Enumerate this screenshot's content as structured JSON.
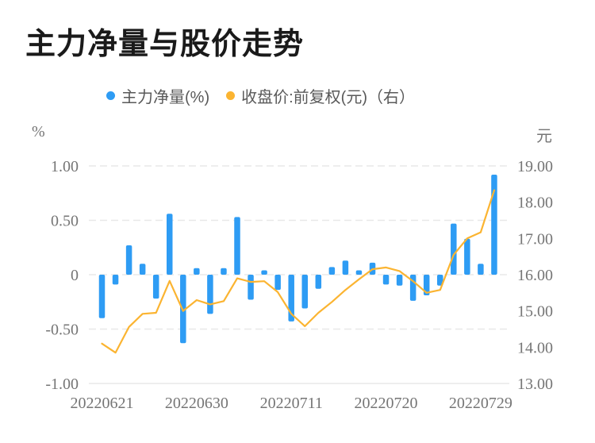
{
  "title": "主力净量与股价走势",
  "legend": [
    {
      "label": "主力净量(%)",
      "color": "#2E9CF4"
    },
    {
      "label": "收盘价:前复权(元)（右）",
      "color": "#FBB431"
    }
  ],
  "chart_data": {
    "type": "combo",
    "n_points": 30,
    "x_tick_labels": [
      "20220621",
      "20220630",
      "20220711",
      "20220720",
      "20220729"
    ],
    "x_tick_indices": [
      0,
      7,
      14,
      21,
      28
    ],
    "left_axis": {
      "unit": "%",
      "tick_labels": [
        "1.00",
        "0.50",
        "0",
        "-0.50",
        "-1.00"
      ],
      "tick_values": [
        1.0,
        0.5,
        0.0,
        -0.5,
        -1.0
      ],
      "min": -1.0,
      "max": 1.0
    },
    "right_axis": {
      "unit": "元",
      "tick_labels": [
        "19.00",
        "18.00",
        "17.00",
        "16.00",
        "15.00",
        "14.00",
        "13.00"
      ],
      "tick_values": [
        19,
        18,
        17,
        16,
        15,
        14,
        13
      ],
      "min": 13.0,
      "max": 19.0
    },
    "grid": {
      "horizontal": true,
      "style": "dashed",
      "color": "#E8E8E8"
    },
    "series": [
      {
        "name": "主力净量(%)",
        "type": "bar",
        "axis": "left",
        "color": "#2E9CF4",
        "values": [
          -0.4,
          -0.09,
          0.27,
          0.1,
          -0.22,
          0.56,
          -0.63,
          0.06,
          -0.36,
          0.06,
          0.53,
          -0.23,
          0.04,
          -0.14,
          -0.43,
          -0.31,
          -0.13,
          0.07,
          0.13,
          0.04,
          0.11,
          -0.09,
          -0.1,
          -0.24,
          -0.19,
          -0.1,
          0.47,
          0.33,
          0.1,
          0.92
        ]
      },
      {
        "name": "收盘价:前复权(元)（右）",
        "type": "line",
        "axis": "right",
        "color": "#FBB431",
        "values": [
          14.1,
          13.85,
          14.56,
          14.92,
          14.95,
          15.83,
          15.0,
          15.3,
          15.18,
          15.27,
          15.9,
          15.8,
          15.82,
          15.52,
          14.92,
          14.58,
          14.95,
          15.25,
          15.58,
          15.87,
          16.15,
          16.2,
          16.1,
          15.82,
          15.5,
          15.58,
          16.55,
          17.0,
          17.17,
          18.33
        ]
      }
    ]
  }
}
